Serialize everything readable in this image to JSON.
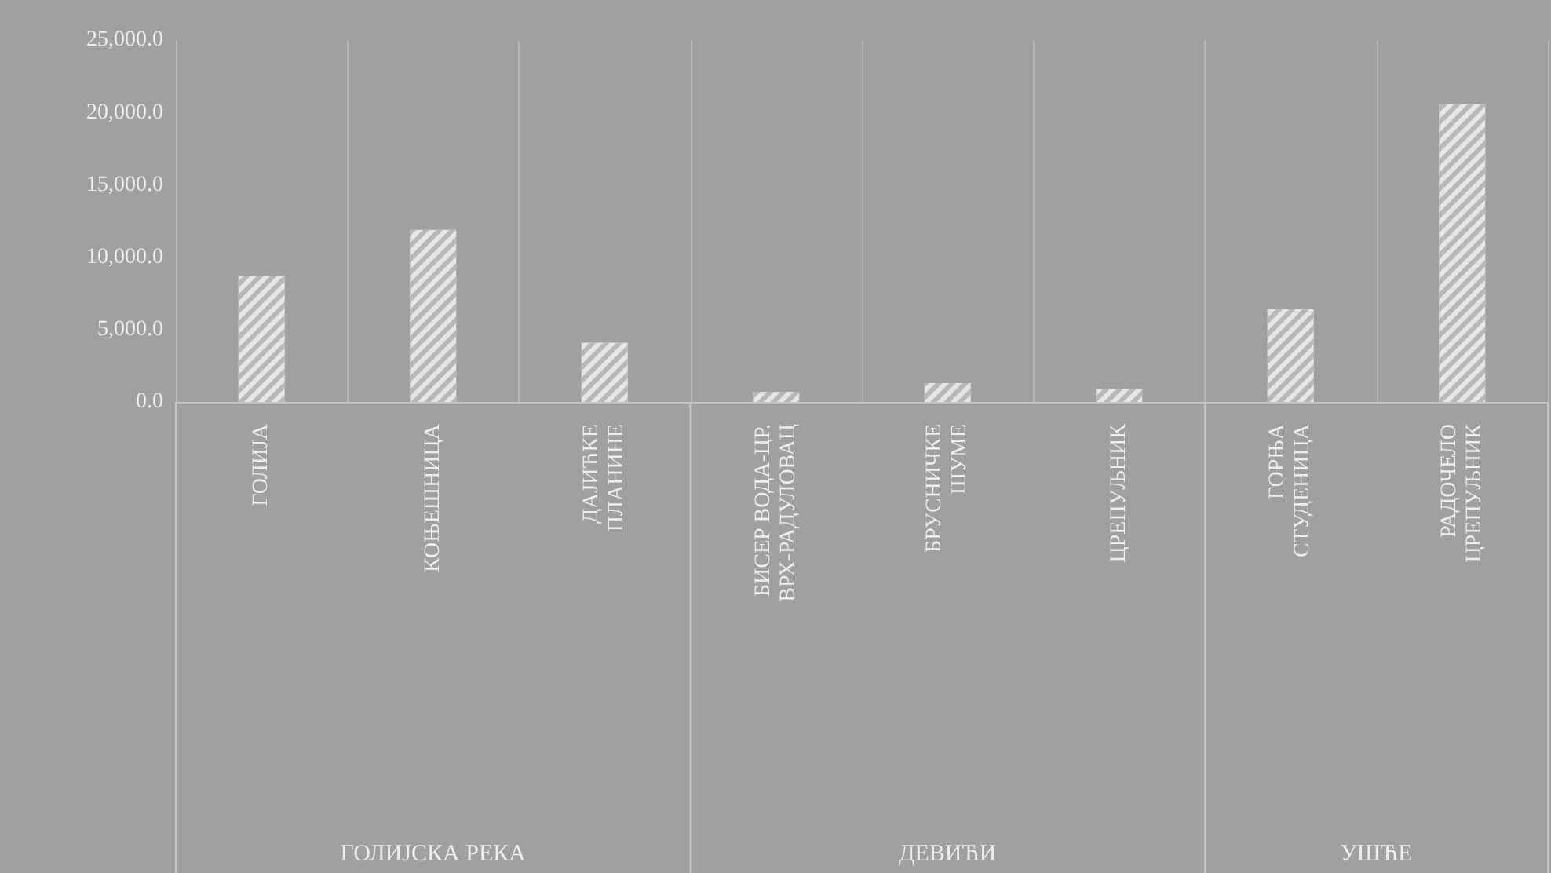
{
  "chart_data": {
    "type": "bar",
    "categories": [
      "ГОЛИЈА",
      "КОЊЕШНИЦА",
      "ДАЈИЋКЕ\nПЛАНИНЕ",
      "БИСЕР ВОДА-ЦР.\nВРХ-РАДУЛОВАЦ",
      "БРУСНИЧКЕ\nШУМЕ",
      "ЦРЕПУЉНИК",
      "ГОРЊА\nСТУДЕНИЦА",
      "РАДОЧЕЛО\nЦРЕПУЉНИК"
    ],
    "values": [
      8700,
      11900,
      4100,
      700,
      1300,
      900,
      6400,
      20600
    ],
    "color": "#e6e6e6",
    "ylim": [
      0,
      25000
    ],
    "yticks": [
      {
        "value": 0,
        "label": "0.0"
      },
      {
        "value": 5000,
        "label": "5,000.0"
      },
      {
        "value": 10000,
        "label": "10,000.0"
      },
      {
        "value": 15000,
        "label": "15,000.0"
      },
      {
        "value": 20000,
        "label": "20,000.0"
      },
      {
        "value": 25000,
        "label": "25,000.0"
      }
    ],
    "grid": "x",
    "annotations": [
      "ГОЛИЈСКА РЕКА",
      "ДЕВИЋИ",
      "УШЋЕ"
    ]
  }
}
